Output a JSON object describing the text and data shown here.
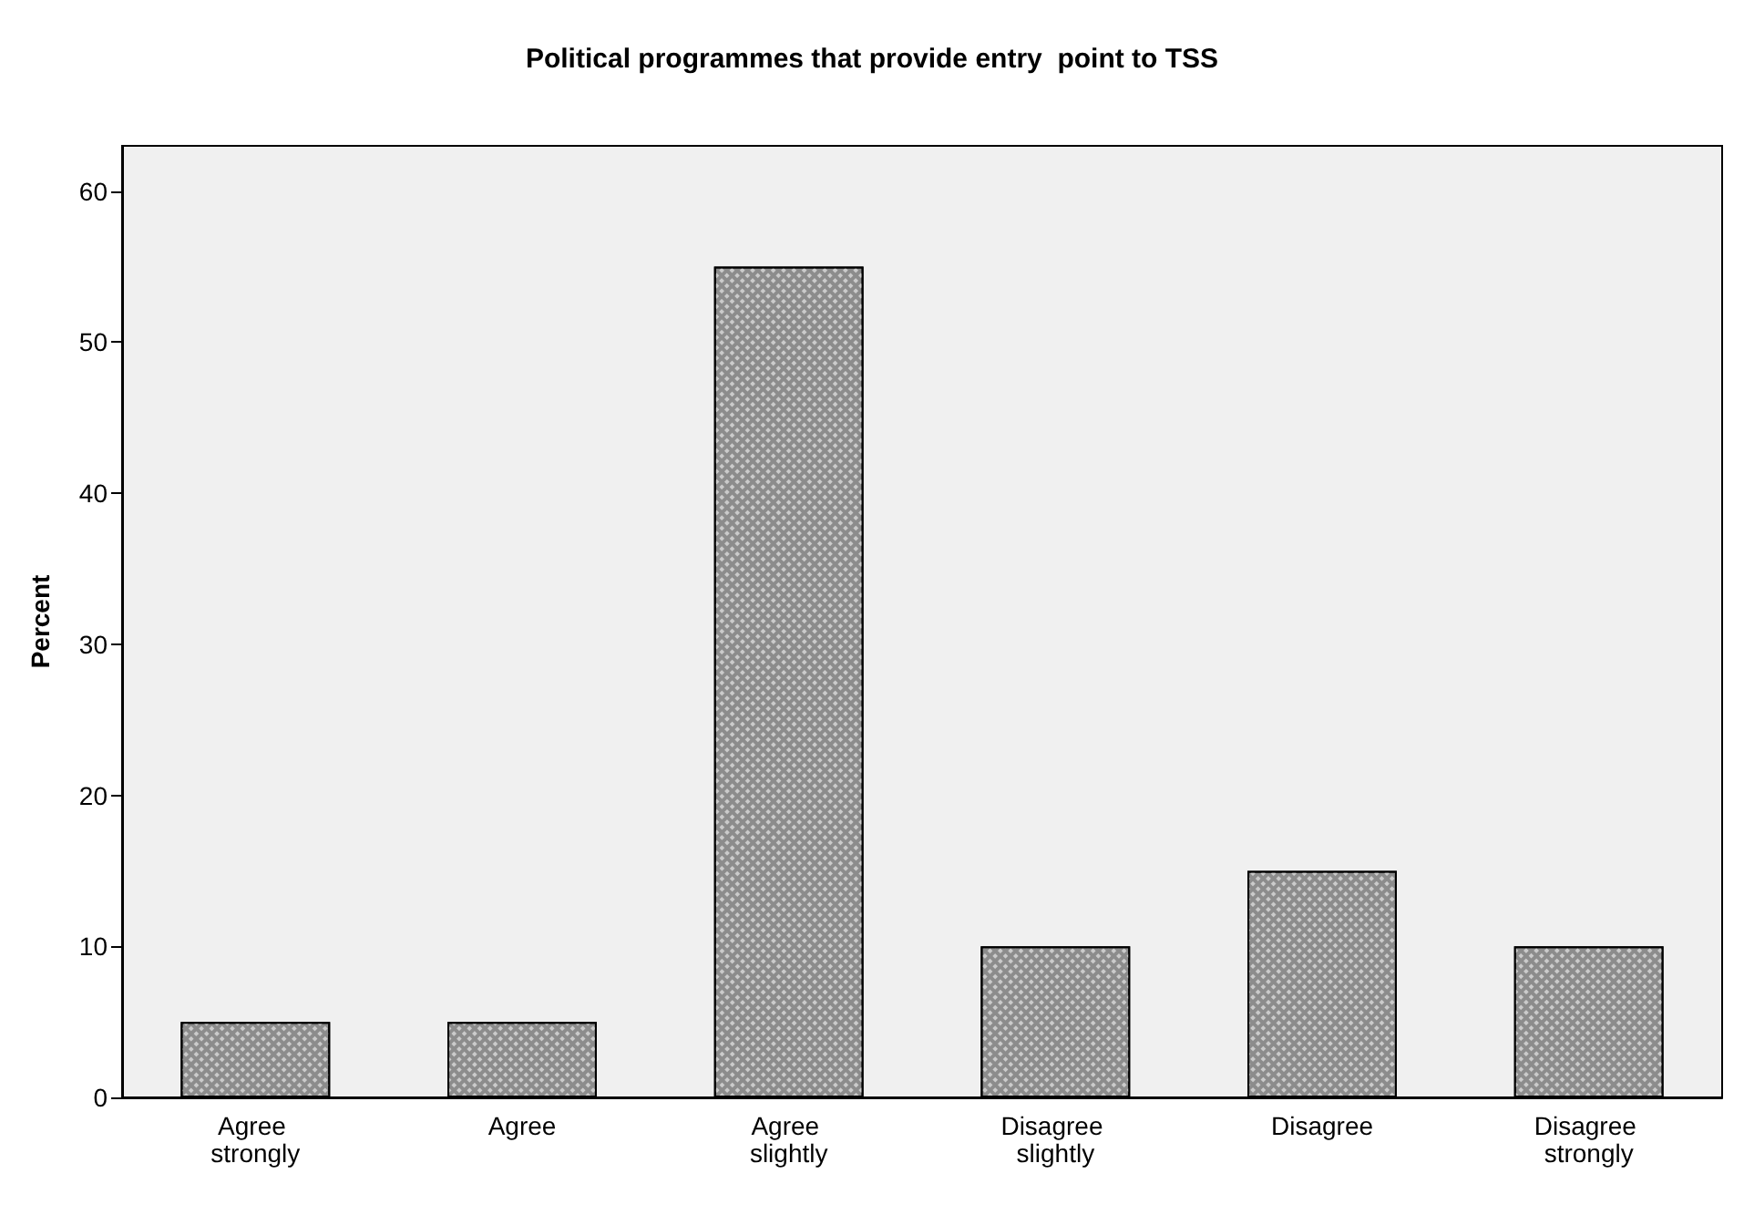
{
  "chart_data": {
    "type": "bar",
    "title": "Political programmes that provide entry  point to TSS",
    "ylabel": "Percent",
    "categories": [
      "Agree strongly",
      "Agree",
      "Agree slightly",
      "Disagree slightly",
      "Disagree",
      "Disagree strongly"
    ],
    "values": [
      5,
      5,
      55,
      10,
      15,
      10
    ],
    "color": "#8c8c8c",
    "ylim": [
      0,
      63
    ],
    "yticks": [
      0,
      10,
      20,
      30,
      40,
      50,
      60
    ],
    "grid": false
  }
}
